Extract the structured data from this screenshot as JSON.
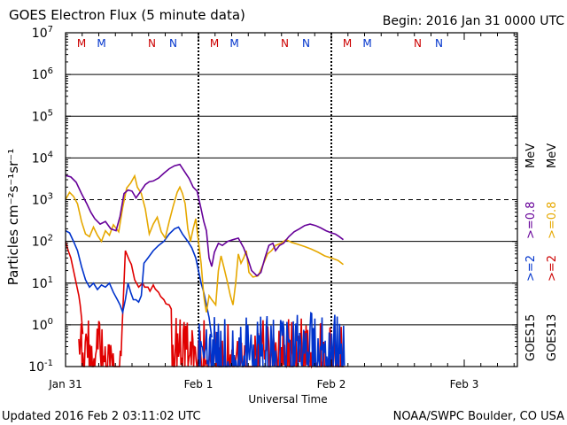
{
  "chart_data": {
    "type": "line",
    "title": "GOES Electron Flux (5 minute data)",
    "begin_label": "Begin: 2016 Jan 31 0000 UTC",
    "xlabel": "Universal Time",
    "ylabel": "Particles cm⁻²s⁻¹sr⁻¹",
    "yscale": "log",
    "ylim": [
      0.1,
      10000000
    ],
    "xlim_days": [
      0,
      3.4
    ],
    "x_ticks": [
      {
        "label": "Jan 31",
        "day": 0
      },
      {
        "label": "Feb 1",
        "day": 1
      },
      {
        "label": "Feb 2",
        "day": 2
      },
      {
        "label": "Feb 3",
        "day": 3
      }
    ],
    "y_ticks": [
      {
        "mantissa": "10",
        "exp": "7",
        "value": 10000000
      },
      {
        "mantissa": "10",
        "exp": "6",
        "value": 1000000
      },
      {
        "mantissa": "10",
        "exp": "5",
        "value": 100000
      },
      {
        "mantissa": "10",
        "exp": "4",
        "value": 10000
      },
      {
        "mantissa": "10",
        "exp": "3",
        "value": 1000
      },
      {
        "mantissa": "10",
        "exp": "2",
        "value": 100
      },
      {
        "mantissa": "10",
        "exp": "1",
        "value": 10
      },
      {
        "mantissa": "10",
        "exp": "0",
        "value": 1
      },
      {
        "mantissa": "10",
        "exp": "-1",
        "value": 0.1
      }
    ],
    "gridlines": [
      1,
      10,
      100,
      1000,
      10000,
      100000,
      1000000
    ],
    "dashed_threshold": 1000,
    "day_boundaries": [
      1,
      2
    ],
    "markers": [
      {
        "label": "M",
        "day": 0.12,
        "color": "#cc0000"
      },
      {
        "label": "M",
        "day": 0.27,
        "color": "#0033cc"
      },
      {
        "label": "N",
        "day": 0.65,
        "color": "#cc0000"
      },
      {
        "label": "N",
        "day": 0.81,
        "color": "#0033cc"
      },
      {
        "label": "M",
        "day": 1.12,
        "color": "#cc0000"
      },
      {
        "label": "M",
        "day": 1.27,
        "color": "#0033cc"
      },
      {
        "label": "N",
        "day": 1.65,
        "color": "#cc0000"
      },
      {
        "label": "N",
        "day": 1.81,
        "color": "#0033cc"
      },
      {
        "label": "M",
        "day": 2.12,
        "color": "#cc0000"
      },
      {
        "label": "M",
        "day": 2.27,
        "color": "#0033cc"
      },
      {
        "label": "N",
        "day": 2.65,
        "color": "#cc0000"
      },
      {
        "label": "N",
        "day": 2.81,
        "color": "#0033cc"
      }
    ],
    "legend_right": [
      {
        "group": "GOES15",
        "labels": [
          {
            "text": ">=2",
            "color": "#0033cc"
          },
          {
            "text": ">=0.8",
            "color": "#660099"
          }
        ],
        "suffix": "MeV"
      },
      {
        "group": "GOES13",
        "labels": [
          {
            "text": ">=2",
            "color": "#cc0000"
          },
          {
            "text": ">=0.8",
            "color": "#e6a800"
          }
        ],
        "suffix": "MeV"
      }
    ],
    "series": [
      {
        "name": "GOES15 >=0.8 MeV",
        "color": "#660099",
        "points": [
          [
            0,
            3800
          ],
          [
            0.04,
            3500
          ],
          [
            0.08,
            2600
          ],
          [
            0.12,
            1400
          ],
          [
            0.16,
            800
          ],
          [
            0.19,
            500
          ],
          [
            0.22,
            350
          ],
          [
            0.26,
            260
          ],
          [
            0.3,
            300
          ],
          [
            0.34,
            200
          ],
          [
            0.38,
            180
          ],
          [
            0.41,
            400
          ],
          [
            0.44,
            1400
          ],
          [
            0.47,
            1700
          ],
          [
            0.5,
            1600
          ],
          [
            0.53,
            1100
          ],
          [
            0.56,
            1500
          ],
          [
            0.6,
            2300
          ],
          [
            0.63,
            2700
          ],
          [
            0.66,
            2800
          ],
          [
            0.7,
            3300
          ],
          [
            0.74,
            4300
          ],
          [
            0.78,
            5500
          ],
          [
            0.82,
            6500
          ],
          [
            0.86,
            7000
          ],
          [
            0.89,
            5000
          ],
          [
            0.93,
            3200
          ],
          [
            0.96,
            2000
          ],
          [
            0.99,
            1600
          ],
          [
            1.02,
            600
          ],
          [
            1.04,
            300
          ],
          [
            1.06,
            180
          ],
          [
            1.08,
            40
          ],
          [
            1.1,
            25
          ],
          [
            1.12,
            55
          ],
          [
            1.15,
            90
          ],
          [
            1.18,
            80
          ],
          [
            1.22,
            100
          ],
          [
            1.26,
            110
          ],
          [
            1.3,
            120
          ],
          [
            1.34,
            70
          ],
          [
            1.37,
            40
          ],
          [
            1.4,
            20
          ],
          [
            1.44,
            15
          ],
          [
            1.47,
            18
          ],
          [
            1.5,
            40
          ],
          [
            1.53,
            80
          ],
          [
            1.56,
            90
          ],
          [
            1.58,
            60
          ],
          [
            1.61,
            80
          ],
          [
            1.64,
            90
          ],
          [
            1.68,
            130
          ],
          [
            1.72,
            170
          ],
          [
            1.76,
            200
          ],
          [
            1.8,
            240
          ],
          [
            1.84,
            260
          ],
          [
            1.88,
            240
          ],
          [
            1.92,
            210
          ],
          [
            1.96,
            180
          ],
          [
            2.0,
            160
          ],
          [
            2.03,
            150
          ],
          [
            2.06,
            130
          ],
          [
            2.09,
            110
          ]
        ]
      },
      {
        "name": "GOES13 >=0.8 MeV",
        "color": "#e6a800",
        "points": [
          [
            0,
            1000
          ],
          [
            0.03,
            1500
          ],
          [
            0.06,
            1200
          ],
          [
            0.09,
            800
          ],
          [
            0.12,
            300
          ],
          [
            0.15,
            150
          ],
          [
            0.18,
            130
          ],
          [
            0.21,
            220
          ],
          [
            0.24,
            140
          ],
          [
            0.27,
            100
          ],
          [
            0.3,
            180
          ],
          [
            0.33,
            140
          ],
          [
            0.36,
            250
          ],
          [
            0.4,
            170
          ],
          [
            0.43,
            650
          ],
          [
            0.46,
            1900
          ],
          [
            0.49,
            2500
          ],
          [
            0.52,
            3700
          ],
          [
            0.54,
            2000
          ],
          [
            0.57,
            1400
          ],
          [
            0.6,
            600
          ],
          [
            0.63,
            150
          ],
          [
            0.66,
            260
          ],
          [
            0.69,
            380
          ],
          [
            0.72,
            170
          ],
          [
            0.75,
            120
          ],
          [
            0.78,
            300
          ],
          [
            0.81,
            700
          ],
          [
            0.84,
            1500
          ],
          [
            0.86,
            2000
          ],
          [
            0.88,
            1400
          ],
          [
            0.9,
            800
          ],
          [
            0.92,
            200
          ],
          [
            0.94,
            100
          ],
          [
            0.96,
            200
          ],
          [
            0.98,
            350
          ],
          [
            1.0,
            100
          ],
          [
            1.02,
            30
          ],
          [
            1.04,
            5
          ],
          [
            1.05,
            3
          ],
          [
            1.06,
            2
          ],
          [
            1.08,
            5
          ],
          [
            1.1,
            4
          ],
          [
            1.13,
            3
          ],
          [
            1.15,
            20
          ],
          [
            1.17,
            45
          ],
          [
            1.19,
            25
          ],
          [
            1.22,
            10
          ],
          [
            1.24,
            5
          ],
          [
            1.26,
            3
          ],
          [
            1.28,
            10
          ],
          [
            1.3,
            50
          ],
          [
            1.32,
            30
          ],
          [
            1.34,
            40
          ],
          [
            1.36,
            60
          ],
          [
            1.38,
            18
          ],
          [
            1.41,
            14
          ],
          [
            1.45,
            15
          ],
          [
            1.48,
            25
          ],
          [
            1.52,
            50
          ],
          [
            1.55,
            60
          ],
          [
            1.58,
            80
          ],
          [
            1.62,
            90
          ],
          [
            1.66,
            110
          ],
          [
            1.7,
            95
          ],
          [
            1.75,
            85
          ],
          [
            1.8,
            75
          ],
          [
            1.85,
            65
          ],
          [
            1.9,
            55
          ],
          [
            1.95,
            45
          ],
          [
            2.0,
            40
          ],
          [
            2.05,
            35
          ],
          [
            2.09,
            28
          ]
        ]
      },
      {
        "name": "GOES15 >=2 MeV",
        "color": "#0033cc",
        "points": [
          [
            0,
            180
          ],
          [
            0.03,
            160
          ],
          [
            0.06,
            100
          ],
          [
            0.09,
            60
          ],
          [
            0.12,
            25
          ],
          [
            0.15,
            12
          ],
          [
            0.18,
            8
          ],
          [
            0.21,
            10
          ],
          [
            0.24,
            7
          ],
          [
            0.27,
            9
          ],
          [
            0.3,
            8
          ],
          [
            0.33,
            10
          ],
          [
            0.36,
            6
          ],
          [
            0.39,
            4
          ],
          [
            0.41,
            3
          ],
          [
            0.43,
            2
          ],
          [
            0.45,
            4
          ],
          [
            0.47,
            10
          ],
          [
            0.49,
            6
          ],
          [
            0.51,
            4
          ],
          [
            0.53,
            4
          ],
          [
            0.55,
            3.5
          ],
          [
            0.57,
            5
          ],
          [
            0.59,
            30
          ],
          [
            0.62,
            40
          ],
          [
            0.66,
            60
          ],
          [
            0.7,
            80
          ],
          [
            0.74,
            100
          ],
          [
            0.78,
            150
          ],
          [
            0.82,
            200
          ],
          [
            0.85,
            220
          ],
          [
            0.88,
            150
          ],
          [
            0.92,
            100
          ],
          [
            0.95,
            70
          ],
          [
            0.98,
            40
          ],
          [
            1.0,
            20
          ],
          [
            1.02,
            10
          ],
          [
            1.04,
            6
          ],
          [
            1.06,
            3
          ],
          [
            1.08,
            1.5
          ],
          [
            1.1,
            0.5
          ]
        ],
        "noisy_from": 1.0,
        "noisy_to": 2.1,
        "noisy_max": 2
      },
      {
        "name": "GOES13 >=2 MeV",
        "color": "#e00000",
        "points": [
          [
            0,
            100
          ],
          [
            0.02,
            60
          ],
          [
            0.04,
            40
          ],
          [
            0.06,
            20
          ],
          [
            0.08,
            10
          ],
          [
            0.1,
            5
          ],
          [
            0.11,
            3
          ],
          [
            0.12,
            1.5
          ],
          [
            0.13,
            0.6
          ]
        ],
        "noisy_from": 0.1,
        "noisy_to": 2.1,
        "noisy_max": 1.5,
        "mid_bumps": [
          [
            0.45,
            60
          ],
          [
            0.48,
            35
          ],
          [
            0.52,
            12
          ],
          [
            0.55,
            8
          ],
          [
            0.58,
            10
          ],
          [
            0.62,
            8
          ],
          [
            0.66,
            9
          ],
          [
            0.7,
            6
          ],
          [
            0.74,
            4
          ],
          [
            0.78,
            3
          ]
        ]
      }
    ]
  },
  "footer": {
    "updated": "Updated 2016 Feb  2 03:11:02 UTC",
    "source": "NOAA/SWPC Boulder, CO USA"
  }
}
